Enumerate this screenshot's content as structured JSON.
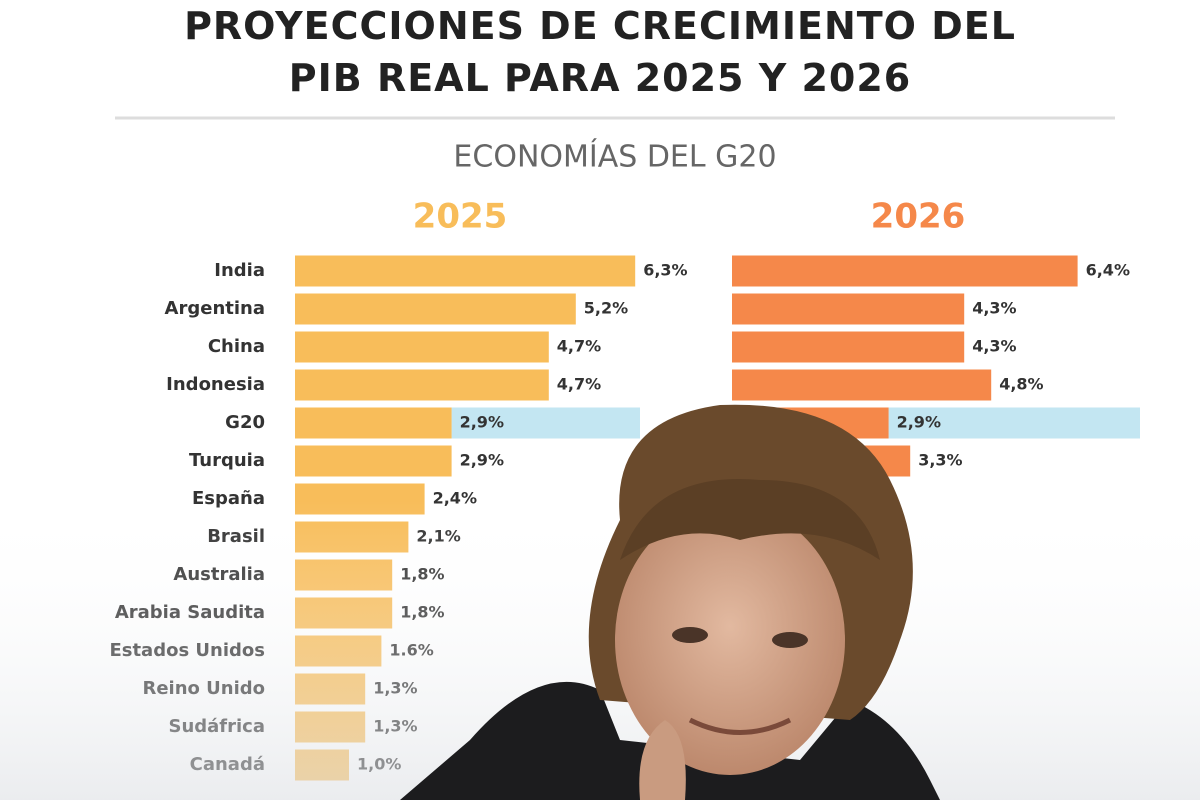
{
  "chart_data": {
    "type": "bar",
    "orientation": "horizontal",
    "title": "PROYECCIONES DE CRECIMIENTO DEL PIB REAL PARA 2025 Y 2026",
    "subtitle": "ECONOMÍAS DEL G20",
    "categories": [
      "India",
      "Argentina",
      "China",
      "Indonesia",
      "G20",
      "Turquia",
      "España",
      "Brasil",
      "Australia",
      "Arabia Saudita",
      "Estados Unidos",
      "Reino Unido",
      "Sudáfrica",
      "Canadá"
    ],
    "series": [
      {
        "name": "2025",
        "color": "#f8bd5a",
        "values": [
          6.3,
          5.2,
          4.7,
          4.7,
          2.9,
          2.9,
          2.4,
          2.1,
          1.8,
          1.8,
          1.6,
          1.3,
          1.3,
          1.0
        ],
        "value_labels": [
          "6,3%",
          "5,2%",
          "4,7%",
          "4,7%",
          "2,9%",
          "2,9%",
          "2,4%",
          "2,1%",
          "1,8%",
          "1,8%",
          "1.6%",
          "1,3%",
          "1,3%",
          "1,0%"
        ]
      },
      {
        "name": "2026",
        "color": "#f5884a",
        "values": [
          6.4,
          4.3,
          4.3,
          4.8,
          2.9,
          3.3,
          null,
          null,
          null,
          null,
          null,
          null,
          null,
          null
        ],
        "value_labels": [
          "6,4%",
          "4,3%",
          "4,3%",
          "4,8%",
          "2,9%",
          "3,3%",
          null,
          null,
          null,
          null,
          null,
          null,
          null,
          null
        ]
      }
    ],
    "highlight": {
      "index": 4,
      "color": "#c3e6f2"
    }
  }
}
